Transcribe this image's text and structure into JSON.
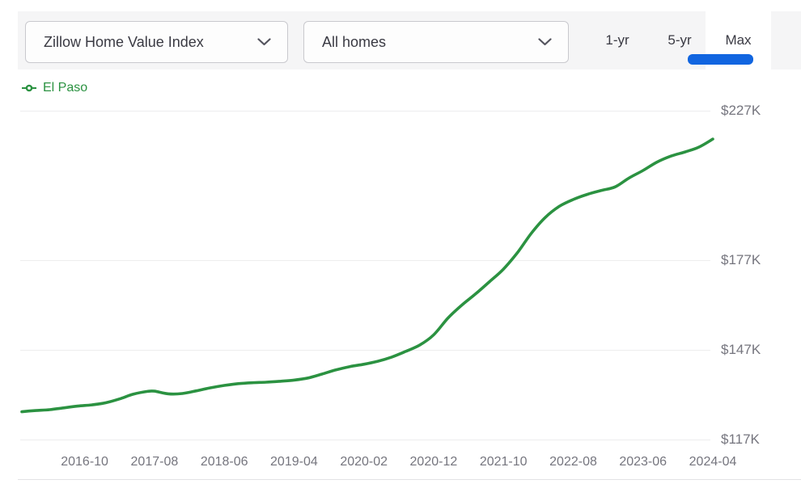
{
  "header": {
    "metric_dropdown": {
      "value": "Zillow Home Value Index"
    },
    "home_type_dropdown": {
      "value": "All homes"
    },
    "range_tabs": [
      {
        "label": "1-yr",
        "active": false
      },
      {
        "label": "5-yr",
        "active": false
      },
      {
        "label": "Max",
        "active": true
      }
    ],
    "active_tab_color": "#1165e0"
  },
  "legend": {
    "series_label": "El Paso",
    "series_color": "#2b9241"
  },
  "chart_data": {
    "type": "line",
    "title": "Zillow Home Value Index — El Paso — All homes — Max range",
    "unit": "USD thousands",
    "grid": true,
    "legend_position": "top-left",
    "x_range": [
      "2016-01",
      "2024-04"
    ],
    "y_axis_side": "right",
    "y_ticks": [
      {
        "label": "$227K",
        "value": 227
      },
      {
        "label": "$177K",
        "value": 177
      },
      {
        "label": "$147K",
        "value": 147
      },
      {
        "label": "$117K",
        "value": 117
      }
    ],
    "x_ticks": [
      "2016-10",
      "2017-08",
      "2018-06",
      "2019-04",
      "2020-02",
      "2020-12",
      "2021-10",
      "2022-08",
      "2023-06",
      "2024-04"
    ],
    "series": [
      {
        "name": "El Paso",
        "color": "#2b9241",
        "points": [
          [
            "2016-01",
            126.3
          ],
          [
            "2016-03",
            126.7
          ],
          [
            "2016-05",
            127.0
          ],
          [
            "2016-07",
            127.6
          ],
          [
            "2016-09",
            128.2
          ],
          [
            "2016-11",
            128.6
          ],
          [
            "2017-01",
            129.3
          ],
          [
            "2017-03",
            130.6
          ],
          [
            "2017-05",
            132.2
          ],
          [
            "2017-07",
            133.1
          ],
          [
            "2017-08",
            133.2
          ],
          [
            "2017-10",
            132.3
          ],
          [
            "2017-12",
            132.4
          ],
          [
            "2018-02",
            133.3
          ],
          [
            "2018-04",
            134.3
          ],
          [
            "2018-06",
            135.1
          ],
          [
            "2018-08",
            135.7
          ],
          [
            "2018-10",
            136.0
          ],
          [
            "2018-12",
            136.2
          ],
          [
            "2019-02",
            136.5
          ],
          [
            "2019-04",
            136.9
          ],
          [
            "2019-06",
            137.6
          ],
          [
            "2019-08",
            138.9
          ],
          [
            "2019-10",
            140.3
          ],
          [
            "2019-12",
            141.4
          ],
          [
            "2020-02",
            142.2
          ],
          [
            "2020-04",
            143.2
          ],
          [
            "2020-06",
            144.6
          ],
          [
            "2020-08",
            146.5
          ],
          [
            "2020-10",
            148.6
          ],
          [
            "2020-12",
            152.0
          ],
          [
            "2021-02",
            157.5
          ],
          [
            "2021-04",
            161.9
          ],
          [
            "2021-06",
            165.7
          ],
          [
            "2021-08",
            169.8
          ],
          [
            "2021-10",
            174.0
          ],
          [
            "2021-12",
            179.5
          ],
          [
            "2022-02",
            186.0
          ],
          [
            "2022-04",
            191.3
          ],
          [
            "2022-06",
            195.0
          ],
          [
            "2022-08",
            197.3
          ],
          [
            "2022-10",
            199.0
          ],
          [
            "2022-12",
            200.3
          ],
          [
            "2023-02",
            201.5
          ],
          [
            "2023-04",
            204.5
          ],
          [
            "2023-06",
            207.0
          ],
          [
            "2023-08",
            209.8
          ],
          [
            "2023-10",
            211.8
          ],
          [
            "2023-12",
            213.2
          ],
          [
            "2024-02",
            214.8
          ],
          [
            "2024-04",
            217.5
          ]
        ]
      }
    ]
  }
}
